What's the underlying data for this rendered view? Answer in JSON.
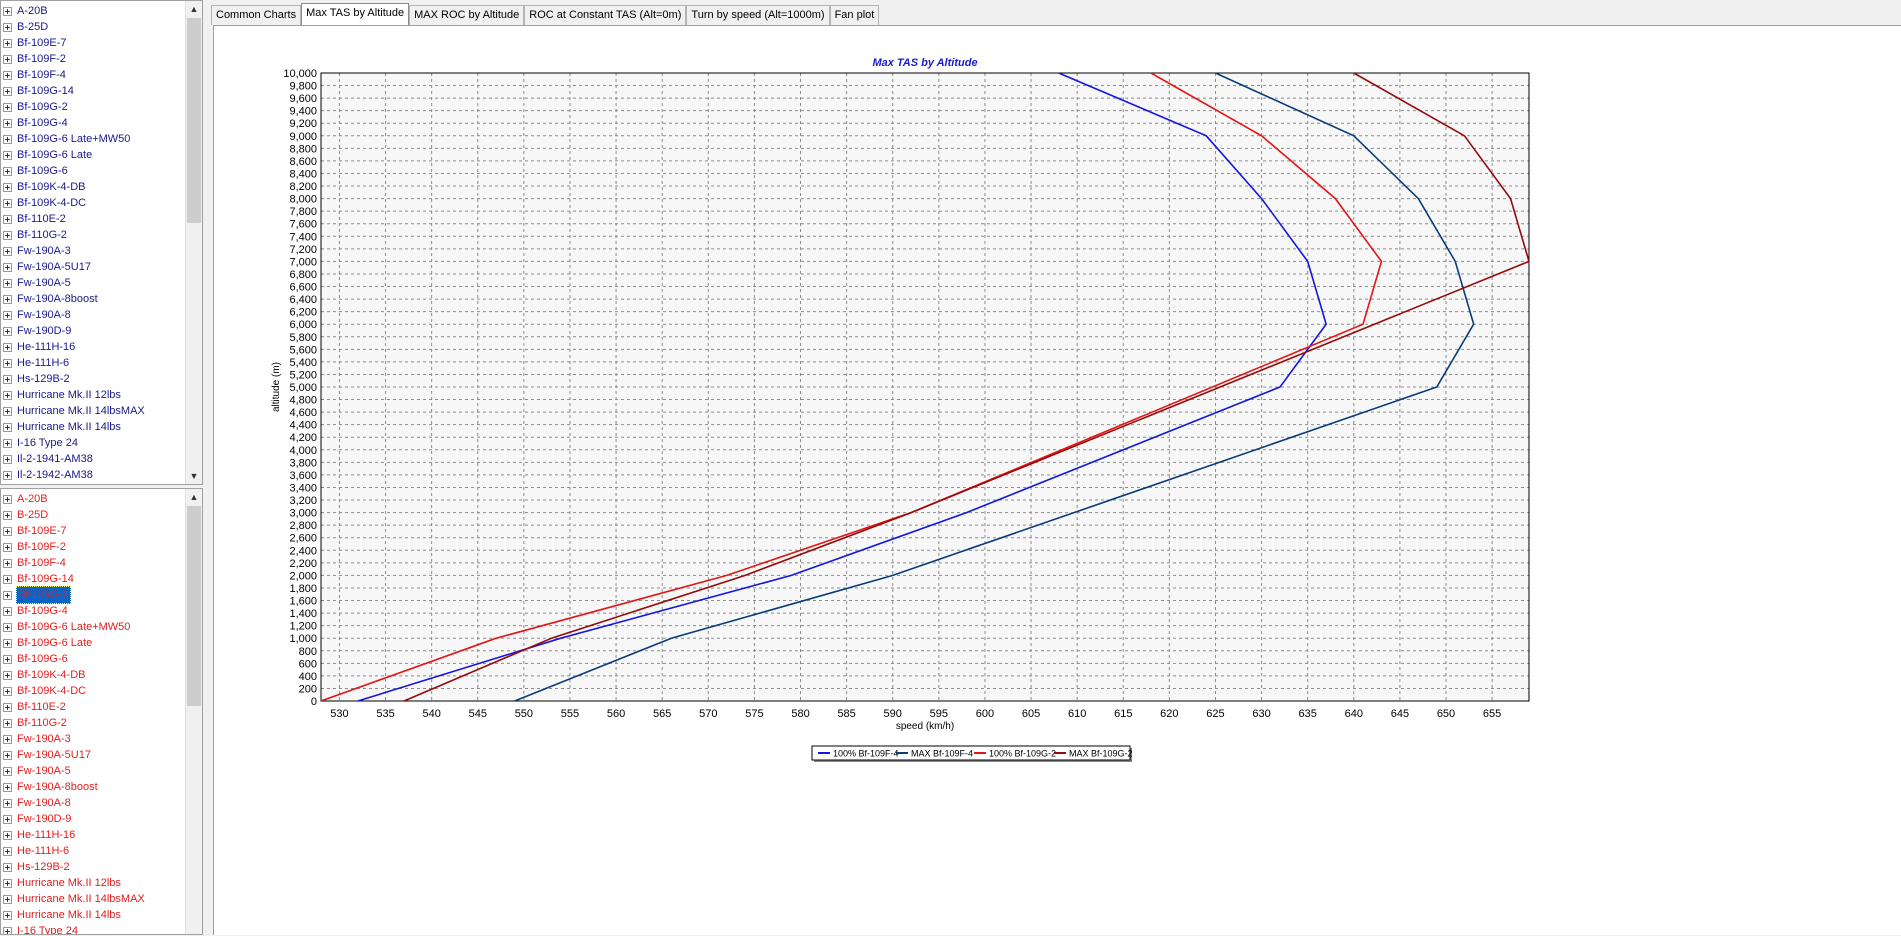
{
  "tree_top": {
    "items": [
      "A-20B",
      "B-25D",
      "Bf-109E-7",
      "Bf-109F-2",
      "Bf-109F-4",
      "Bf-109G-14",
      "Bf-109G-2",
      "Bf-109G-4",
      "Bf-109G-6 Late+MW50",
      "Bf-109G-6 Late",
      "Bf-109G-6",
      "Bf-109K-4-DB",
      "Bf-109K-4-DC",
      "Bf-110E-2",
      "Bf-110G-2",
      "Fw-190A-3",
      "Fw-190A-5U17",
      "Fw-190A-5",
      "Fw-190A-8boost",
      "Fw-190A-8",
      "Fw-190D-9",
      "He-111H-16",
      "He-111H-6",
      "Hs-129B-2",
      "Hurricane Mk.II 12lbs",
      "Hurricane Mk.II 14lbsMAX",
      "Hurricane Mk.II 14lbs",
      "I-16 Type 24",
      "Il-2-1941-AM38",
      "Il-2-1942-AM38"
    ]
  },
  "tree_bottom": {
    "items": [
      "A-20B",
      "B-25D",
      "Bf-109E-7",
      "Bf-109F-2",
      "Bf-109F-4",
      "Bf-109G-14",
      "Bf-109G-2",
      "Bf-109G-4",
      "Bf-109G-6 Late+MW50",
      "Bf-109G-6 Late",
      "Bf-109G-6",
      "Bf-109K-4-DB",
      "Bf-109K-4-DC",
      "Bf-110E-2",
      "Bf-110G-2",
      "Fw-190A-3",
      "Fw-190A-5U17",
      "Fw-190A-5",
      "Fw-190A-8boost",
      "Fw-190A-8",
      "Fw-190D-9",
      "He-111H-16",
      "He-111H-6",
      "Hs-129B-2",
      "Hurricane Mk.II 12lbs",
      "Hurricane Mk.II 14lbsMAX",
      "Hurricane Mk.II 14lbs",
      "I-16 Type 24"
    ],
    "selected": "Bf-109G-2"
  },
  "tabs": [
    {
      "label": "Common Charts",
      "active": false
    },
    {
      "label": "Max TAS by Altitude",
      "active": true
    },
    {
      "label": "MAX ROC by Altitude",
      "active": false
    },
    {
      "label": "ROC at Constant TAS (Alt=0m)",
      "active": false
    },
    {
      "label": "Turn by speed (Alt=1000m)",
      "active": false
    },
    {
      "label": "Fan plot",
      "active": false
    }
  ],
  "icons": {
    "expander": "plus-box-icon",
    "scroll_up": "arrow-up-icon",
    "scroll_down": "arrow-down-icon"
  },
  "colors": {
    "top_tree_text": "#1a1a8c",
    "bottom_tree_text": "#e02020",
    "selection": "#0a64c8"
  },
  "chart_data": {
    "type": "line",
    "title": "Max TAS by Altitude",
    "xlabel": "speed (km/h)",
    "ylabel": "altitude (m)",
    "xlim": [
      528,
      659
    ],
    "ylim": [
      0,
      10000
    ],
    "x_ticks": [
      530,
      535,
      540,
      545,
      550,
      555,
      560,
      565,
      570,
      575,
      580,
      585,
      590,
      595,
      600,
      605,
      610,
      615,
      620,
      625,
      630,
      635,
      640,
      645,
      650,
      655
    ],
    "x_tick_labels": [
      "530",
      "535",
      "540",
      "545",
      "550",
      "555",
      "560",
      "565",
      "570",
      "575",
      "580",
      "585",
      "590",
      "595",
      "600",
      "605",
      "610",
      "615",
      "620",
      "625",
      "630",
      "635",
      "640",
      "645",
      "650",
      "655"
    ],
    "y_ticks": [
      0,
      200,
      400,
      600,
      800,
      1000,
      1200,
      1400,
      1600,
      1800,
      2000,
      2200,
      2400,
      2600,
      2800,
      3000,
      3200,
      3400,
      3600,
      3800,
      4000,
      4200,
      4400,
      4600,
      4800,
      5000,
      5200,
      5400,
      5600,
      5800,
      6000,
      6200,
      6400,
      6600,
      6800,
      7000,
      7200,
      7400,
      7600,
      7800,
      8000,
      8200,
      8400,
      8600,
      8800,
      9000,
      9200,
      9400,
      9600,
      9800,
      10000
    ],
    "y_tick_labels": [
      "0",
      "200",
      "400",
      "600",
      "800",
      "1,000",
      "1,200",
      "1,400",
      "1,600",
      "1,800",
      "2,000",
      "2,200",
      "2,400",
      "2,600",
      "2,800",
      "3,000",
      "3,200",
      "3,400",
      "3,600",
      "3,800",
      "4,000",
      "4,200",
      "4,400",
      "4,600",
      "4,800",
      "5,000",
      "5,200",
      "5,400",
      "5,600",
      "5,800",
      "6,000",
      "6,200",
      "6,400",
      "6,600",
      "6,800",
      "7,000",
      "7,200",
      "7,400",
      "7,600",
      "7,800",
      "8,000",
      "8,200",
      "8,400",
      "8,600",
      "8,800",
      "9,000",
      "9,200",
      "9,400",
      "9,600",
      "9,800",
      "10,000"
    ],
    "grid": true,
    "legend_position": "bottom-center",
    "series": [
      {
        "name": "100% Bf-109F-4",
        "color": "#1414e6",
        "x": [
          532,
          554,
          579,
          598,
          632,
          637,
          635,
          630,
          624,
          608
        ],
        "y": [
          0,
          1000,
          2000,
          3000,
          5000,
          6000,
          7000,
          8000,
          9000,
          10000
        ]
      },
      {
        "name": "MAX Bf-109F-4",
        "color": "#0a3c78",
        "x": [
          549,
          566,
          590,
          649,
          653,
          651,
          647,
          640,
          625
        ],
        "y": [
          0,
          1000,
          2000,
          5000,
          6000,
          7000,
          8000,
          9000,
          10000
        ]
      },
      {
        "name": "100% Bf-109G-2",
        "color": "#e61414",
        "x": [
          528,
          547,
          572,
          592,
          641,
          643,
          638,
          630,
          618
        ],
        "y": [
          0,
          1000,
          2000,
          3000,
          6000,
          7000,
          8000,
          9000,
          10000
        ]
      },
      {
        "name": "MAX Bf-109G-2",
        "color": "#960a0a",
        "x": [
          537,
          553,
          574,
          592,
          659,
          657,
          652,
          640
        ],
        "y": [
          0,
          1000,
          2000,
          3000,
          7000,
          8000,
          9000,
          10000
        ]
      }
    ]
  }
}
